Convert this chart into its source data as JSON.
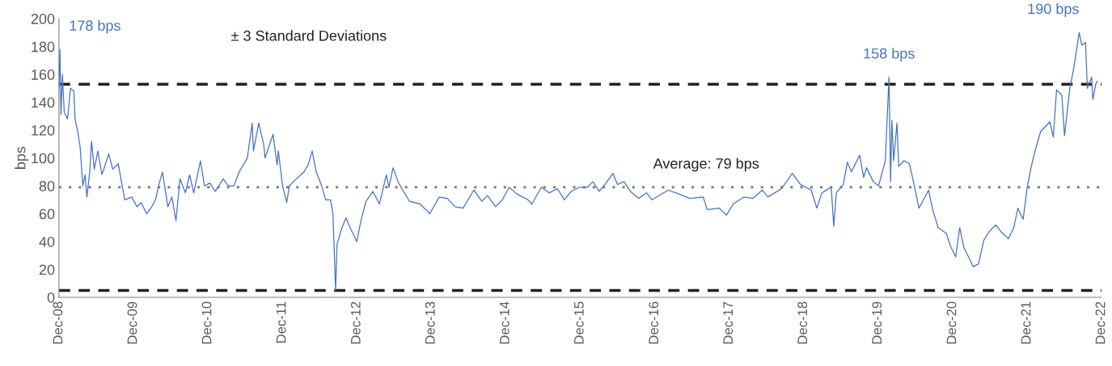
{
  "chart_data": {
    "type": "line",
    "ylabel": "bps",
    "x": [
      "2008-12-01",
      "2008-12-06",
      "2008-12-11",
      "2008-12-18",
      "2008-12-27",
      "2009-01-12",
      "2009-01-27",
      "2009-02-12",
      "2009-02-18",
      "2009-03-02",
      "2009-03-15",
      "2009-03-28",
      "2009-04-08",
      "2009-04-17",
      "2009-05-01",
      "2009-05-10",
      "2009-05-23",
      "2009-06-10",
      "2009-06-30",
      "2009-08-02",
      "2009-08-22",
      "2009-09-18",
      "2009-10-01",
      "2009-10-20",
      "2009-11-23",
      "2009-12-19",
      "2010-01-08",
      "2010-02-04",
      "2010-03-01",
      "2010-03-20",
      "2010-04-03",
      "2010-04-23",
      "2010-05-19",
      "2010-06-08",
      "2010-06-28",
      "2010-07-18",
      "2010-08-13",
      "2010-09-03",
      "2010-09-23",
      "2010-10-26",
      "2010-11-15",
      "2010-12-11",
      "2011-01-07",
      "2011-02-15",
      "2011-03-12",
      "2011-04-08",
      "2011-05-04",
      "2011-05-24",
      "2011-06-13",
      "2011-07-07",
      "2011-07-13",
      "2011-08-08",
      "2011-09-01",
      "2011-09-08",
      "2011-10-17",
      "2011-11-06",
      "2011-11-12",
      "2011-12-03",
      "2011-12-23",
      "2012-01-05",
      "2012-02-08",
      "2012-03-17",
      "2012-04-06",
      "2012-04-26",
      "2012-05-16",
      "2012-06-12",
      "2012-07-01",
      "2012-07-25",
      "2012-08-06",
      "2012-08-19",
      "2012-08-26",
      "2012-09-03",
      "2012-09-19",
      "2012-10-09",
      "2012-10-29",
      "2012-12-01",
      "2012-12-21",
      "2013-01-15",
      "2013-02-18",
      "2013-03-22",
      "2013-04-25",
      "2013-05-07",
      "2013-05-28",
      "2013-06-24",
      "2013-08-16",
      "2013-10-07",
      "2013-11-24",
      "2014-01-09",
      "2014-02-18",
      "2014-03-28",
      "2014-05-06",
      "2014-06-28",
      "2014-08-06",
      "2014-09-03",
      "2014-10-12",
      "2014-11-15",
      "2014-12-18",
      "2015-01-27",
      "2015-03-20",
      "2015-04-09",
      "2015-05-25",
      "2015-07-03",
      "2015-08-12",
      "2015-09-15",
      "2015-10-18",
      "2015-11-27",
      "2016-01-06",
      "2016-02-02",
      "2016-03-04",
      "2016-04-06",
      "2016-05-10",
      "2016-06-01",
      "2016-07-03",
      "2016-08-04",
      "2016-09-13",
      "2016-10-22",
      "2016-11-18",
      "2017-02-06",
      "2017-04-01",
      "2017-05-22",
      "2017-07-27",
      "2017-08-15",
      "2017-10-14",
      "2017-11-18",
      "2017-12-21",
      "2018-02-12",
      "2018-03-28",
      "2018-05-13",
      "2018-06-09",
      "2018-08-15",
      "2018-10-07",
      "2018-11-16",
      "2019-01-08",
      "2019-02-04",
      "2019-03-01",
      "2019-04-16",
      "2019-04-28",
      "2019-05-11",
      "2019-06-14",
      "2019-07-04",
      "2019-07-24",
      "2019-09-02",
      "2019-09-22",
      "2019-10-06",
      "2019-11-08",
      "2019-12-04",
      "2020-01-06",
      "2020-01-24",
      "2020-02-01",
      "2020-02-07",
      "2020-02-16",
      "2020-03-03",
      "2020-03-12",
      "2020-04-07",
      "2020-05-03",
      "2020-05-23",
      "2020-06-19",
      "2020-07-15",
      "2020-08-05",
      "2020-08-25",
      "2020-09-21",
      "2020-10-31",
      "2020-11-20",
      "2020-12-16",
      "2021-01-05",
      "2021-01-25",
      "2021-02-14",
      "2021-03-12",
      "2021-04-07",
      "2021-05-03",
      "2021-05-29",
      "2021-07-01",
      "2021-07-27",
      "2021-09-01",
      "2021-09-27",
      "2021-10-17",
      "2021-11-12",
      "2021-12-02",
      "2021-12-22",
      "2022-01-11",
      "2022-02-06",
      "2022-03-23",
      "2022-04-09",
      "2022-04-25",
      "2022-05-21",
      "2022-06-03",
      "2022-06-29",
      "2022-07-19",
      "2022-08-14",
      "2022-08-27",
      "2022-09-14",
      "2022-09-23",
      "2022-10-14",
      "2022-10-20",
      "2022-11-03",
      "2022-11-10"
    ],
    "series": [
      {
        "color": "#4472c4",
        "values": [
          150,
          178,
          131,
          160,
          133,
          128,
          150,
          148,
          128,
          120,
          108,
          80,
          88,
          72,
          90,
          112,
          92,
          105,
          88,
          103,
          92,
          96,
          85,
          70,
          72,
          65,
          68,
          60,
          65,
          70,
          80,
          90,
          65,
          72,
          55,
          85,
          75,
          88,
          75,
          98,
          80,
          82,
          76,
          85,
          80,
          80,
          90,
          95,
          100,
          125,
          105,
          125,
          110,
          100,
          117,
          95,
          105,
          80,
          68,
          80,
          85,
          90,
          95,
          105,
          90,
          80,
          70,
          70,
          60,
          5,
          38,
          42,
          50,
          57,
          50,
          40,
          55,
          69,
          76,
          67,
          88,
          79,
          93,
          82,
          69,
          67,
          60,
          72,
          71,
          65,
          64,
          77,
          69,
          73,
          65,
          70,
          79,
          74,
          70,
          67,
          79,
          75,
          78,
          70,
          76,
          79,
          79,
          83,
          76,
          82,
          89,
          81,
          83,
          76,
          71,
          75,
          70,
          77,
          74,
          71,
          72,
          63,
          64,
          59,
          67,
          72,
          71,
          77,
          72,
          78,
          89,
          81,
          77,
          64,
          75,
          79,
          51,
          75,
          81,
          97,
          90,
          102,
          86,
          93,
          83,
          80,
          98,
          158,
          83,
          127,
          98,
          125,
          94,
          98,
          96,
          83,
          64,
          71,
          77,
          63,
          50,
          46,
          37,
          29,
          50,
          36,
          30,
          22,
          24,
          41,
          47,
          52,
          47,
          42,
          50,
          64,
          56,
          79,
          94,
          106,
          119,
          126,
          115,
          149,
          145,
          116,
          150,
          165,
          190,
          181,
          183,
          150,
          158,
          142,
          153,
          155
        ]
      }
    ],
    "ylim": [
      0,
      200
    ],
    "yticks": [
      0,
      20,
      40,
      60,
      80,
      100,
      120,
      140,
      160,
      180,
      200
    ],
    "xlim": [
      "2008-12-01",
      "2022-12-01"
    ],
    "xticks": [
      {
        "value": "2008-12-01",
        "label": "Dec-08"
      },
      {
        "value": "2009-12-01",
        "label": "Dec-09"
      },
      {
        "value": "2010-12-01",
        "label": "Dec-10"
      },
      {
        "value": "2011-12-01",
        "label": "Dec-11"
      },
      {
        "value": "2012-12-01",
        "label": "Dec-12"
      },
      {
        "value": "2013-12-01",
        "label": "Dec-13"
      },
      {
        "value": "2014-12-01",
        "label": "Dec-14"
      },
      {
        "value": "2015-12-01",
        "label": "Dec-15"
      },
      {
        "value": "2016-12-01",
        "label": "Dec-16"
      },
      {
        "value": "2017-12-01",
        "label": "Dec-17"
      },
      {
        "value": "2018-12-01",
        "label": "Dec-18"
      },
      {
        "value": "2019-12-01",
        "label": "Dec-19"
      },
      {
        "value": "2020-12-01",
        "label": "Dec-20"
      },
      {
        "value": "2021-12-01",
        "label": "Dec-21"
      },
      {
        "value": "2022-12-01",
        "label": "Dec-22"
      }
    ],
    "ref_lines": [
      {
        "axis": "y",
        "value": 153,
        "label": "± 3 Standard Deviations",
        "color": "#222222",
        "line_style": "dashed"
      },
      {
        "axis": "y",
        "value": 79,
        "label": "Average: 79 bps",
        "color": "#808080",
        "line_style": "dotted"
      },
      {
        "axis": "y",
        "value": 5,
        "color": "#222222",
        "line_style": "dashed"
      }
    ],
    "annotations": [
      {
        "text": "178 bps",
        "x": "2008-12-06",
        "y": 178
      },
      {
        "text": "158 bps",
        "x": "2020-01-24",
        "y": 158
      },
      {
        "text": "190 bps",
        "x": "2022-08-14",
        "y": 190
      }
    ],
    "grid": false,
    "legend": false
  }
}
